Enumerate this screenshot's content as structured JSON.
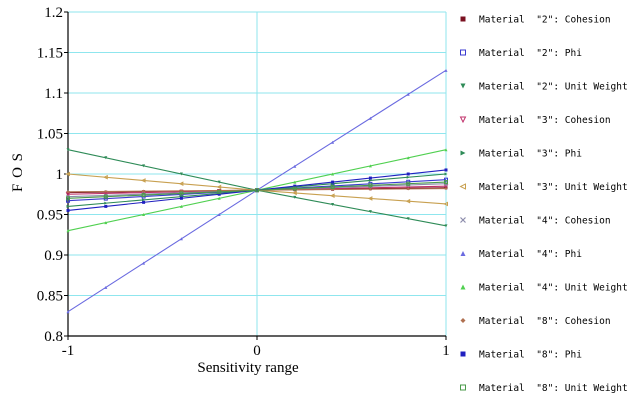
{
  "chart_data": {
    "type": "line",
    "title": "",
    "xlabel": "Sensitivity range",
    "ylabel": "F O S",
    "xlim": [
      -1,
      1
    ],
    "ylim": [
      0.8,
      1.2
    ],
    "x_ticks": [
      "-1",
      "0",
      "1"
    ],
    "y_ticks": [
      "0.8",
      "0.85",
      "0.9",
      "0.95",
      "1",
      "1.05",
      "1.1",
      "1.15",
      "1.2"
    ],
    "grid": true,
    "legend_position": "right",
    "series": [
      {
        "name": "Material  \"2\": Cohesion",
        "x": [
          -1,
          0,
          1
        ],
        "y": [
          0.977,
          0.98,
          0.983
        ],
        "color": "#7a1020",
        "marker": "square-filled"
      },
      {
        "name": "Material  \"2\": Phi",
        "x": [
          -1,
          0,
          1
        ],
        "y": [
          0.967,
          0.98,
          0.993
        ],
        "color": "#3a3ad0",
        "marker": "square-open"
      },
      {
        "name": "Material  \"2\": Unit Weight",
        "x": [
          -1,
          0,
          1
        ],
        "y": [
          1.03,
          0.98,
          0.936
        ],
        "color": "#2e8b57",
        "marker": "triangle-down"
      },
      {
        "name": "Material  \"3\": Cohesion",
        "x": [
          -1,
          0,
          1
        ],
        "y": [
          0.975,
          0.98,
          0.985
        ],
        "color": "#c0306a",
        "marker": "triangle-down-open"
      },
      {
        "name": "Material  \"3\": Phi",
        "x": [
          -1,
          0,
          1
        ],
        "y": [
          0.96,
          0.98,
          1.0
        ],
        "color": "#2e8b57",
        "marker": "triangle-right"
      },
      {
        "name": "Material  \"3\": Unit Weight",
        "x": [
          -1,
          0,
          1
        ],
        "y": [
          1.0,
          0.98,
          0.963
        ],
        "color": "#c8a050",
        "marker": "triangle-left-open"
      },
      {
        "name": "Material  \"4\": Cohesion",
        "x": [
          -1,
          0,
          1
        ],
        "y": [
          0.972,
          0.98,
          0.988
        ],
        "color": "#8c8cac",
        "marker": "x"
      },
      {
        "name": "Material  \"4\": Phi",
        "x": [
          -1,
          0,
          1
        ],
        "y": [
          0.83,
          0.98,
          1.128
        ],
        "color": "#6a6ae0",
        "marker": "triangle-up"
      },
      {
        "name": "Material  \"4\": Unit Weight",
        "x": [
          -1,
          0,
          1
        ],
        "y": [
          0.93,
          0.98,
          1.03
        ],
        "color": "#50d050",
        "marker": "triangle-up"
      },
      {
        "name": "Material  \"8\": Cohesion",
        "x": [
          -1,
          0,
          1
        ],
        "y": [
          0.978,
          0.98,
          0.982
        ],
        "color": "#b07050",
        "marker": "diamond"
      },
      {
        "name": "Material  \"8\": Phi",
        "x": [
          -1,
          0,
          1
        ],
        "y": [
          0.955,
          0.98,
          1.005
        ],
        "color": "#2020c0",
        "marker": "square-filled"
      },
      {
        "name": "Material  \"8\": Unit Weight",
        "x": [
          -1,
          0,
          1
        ],
        "y": [
          0.97,
          0.98,
          0.99
        ],
        "color": "#4a9a4a",
        "marker": "square-open"
      }
    ]
  }
}
